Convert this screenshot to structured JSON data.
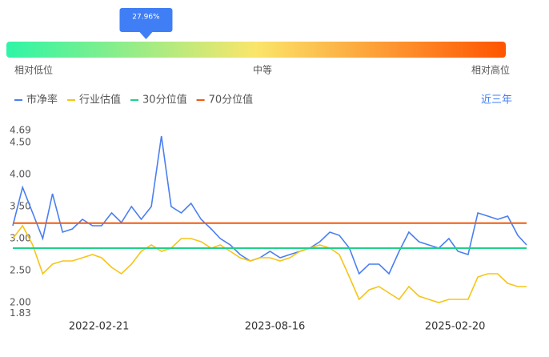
{
  "gauge": {
    "value": {
      "value": 27.96,
      "label": "27.96%"
    },
    "range": [
      0,
      100
    ],
    "labels": [
      "相对低位",
      "中等",
      "相对高位"
    ]
  },
  "period": "近三年",
  "chart_data": {
    "type": "line",
    "x": [
      "2021-06-01",
      "2021-07-01",
      "2021-08-01",
      "2021-09-01",
      "2021-10-01",
      "2021-11-01",
      "2021-12-01",
      "2022-01-01",
      "2022-02-01",
      "2022-03-01",
      "2022-04-01",
      "2022-05-01",
      "2022-06-01",
      "2022-07-01",
      "2022-08-01",
      "2022-09-01",
      "2022-10-01",
      "2022-11-01",
      "2022-12-01",
      "2023-01-01",
      "2023-02-01",
      "2023-03-01",
      "2023-04-01",
      "2023-05-01",
      "2023-06-01",
      "2023-07-01",
      "2023-08-01",
      "2023-09-01",
      "2023-10-01",
      "2023-11-01",
      "2023-12-01",
      "2024-01-01",
      "2024-02-01",
      "2024-03-01",
      "2024-04-01",
      "2024-05-01",
      "2024-06-01",
      "2024-07-01",
      "2024-08-01",
      "2024-09-01",
      "2024-10-01",
      "2024-11-01",
      "2024-12-01",
      "2025-01-01",
      "2025-02-01",
      "2025-03-01",
      "2025-04-01",
      "2025-05-01",
      "2025-06-01",
      "2025-07-01",
      "2025-08-01",
      "2025-09-01",
      "2025-09-28"
    ],
    "series": [
      {
        "name": "市净率",
        "color": "#4a7ff0",
        "values": [
          3.2,
          3.8,
          3.4,
          3.0,
          3.7,
          3.1,
          3.15,
          3.3,
          3.2,
          3.2,
          3.4,
          3.25,
          3.5,
          3.3,
          3.5,
          4.6,
          3.5,
          3.4,
          3.55,
          3.3,
          3.15,
          3.0,
          2.9,
          2.75,
          2.65,
          2.7,
          2.8,
          2.7,
          2.75,
          2.8,
          2.85,
          2.95,
          3.1,
          3.05,
          2.85,
          2.45,
          2.6,
          2.6,
          2.45,
          2.8,
          3.1,
          2.95,
          2.9,
          2.85,
          3.0,
          2.8,
          2.75,
          3.4,
          3.35,
          3.3,
          3.35,
          3.05,
          2.9
        ]
      },
      {
        "name": "行业估值",
        "color": "#f5c518",
        "values": [
          3.0,
          3.2,
          2.9,
          2.45,
          2.6,
          2.65,
          2.65,
          2.7,
          2.75,
          2.7,
          2.55,
          2.45,
          2.6,
          2.8,
          2.9,
          2.8,
          2.85,
          3.0,
          3.0,
          2.95,
          2.85,
          2.9,
          2.8,
          2.7,
          2.65,
          2.7,
          2.7,
          2.65,
          2.7,
          2.8,
          2.85,
          2.9,
          2.85,
          2.75,
          2.4,
          2.05,
          2.2,
          2.25,
          2.15,
          2.05,
          2.25,
          2.1,
          2.05,
          2.0,
          2.05,
          2.05,
          2.05,
          2.4,
          2.45,
          2.45,
          2.3,
          2.25,
          2.25
        ]
      },
      {
        "name": "30分位值",
        "color": "#1fd18a",
        "value": 2.85
      },
      {
        "name": "70分位值",
        "color": "#f25a0f",
        "value": 3.24
      }
    ],
    "xlim": [
      "2021-06-01",
      "2025-09-28"
    ],
    "xticks": [
      "2022-02-21",
      "2023-08-16",
      "2025-02-20"
    ],
    "ylim": [
      1.83,
      4.69
    ],
    "yticks": [
      1.83,
      {
        "value": 2,
        "label": "2.00"
      },
      {
        "value": 2.5,
        "label": "2.50"
      },
      {
        "value": 3,
        "label": "3.00"
      },
      {
        "value": 3.5,
        "label": "3.50"
      },
      {
        "value": 4,
        "label": "4.00"
      },
      {
        "value": 4.5,
        "label": "4.50"
      },
      4.69
    ]
  }
}
